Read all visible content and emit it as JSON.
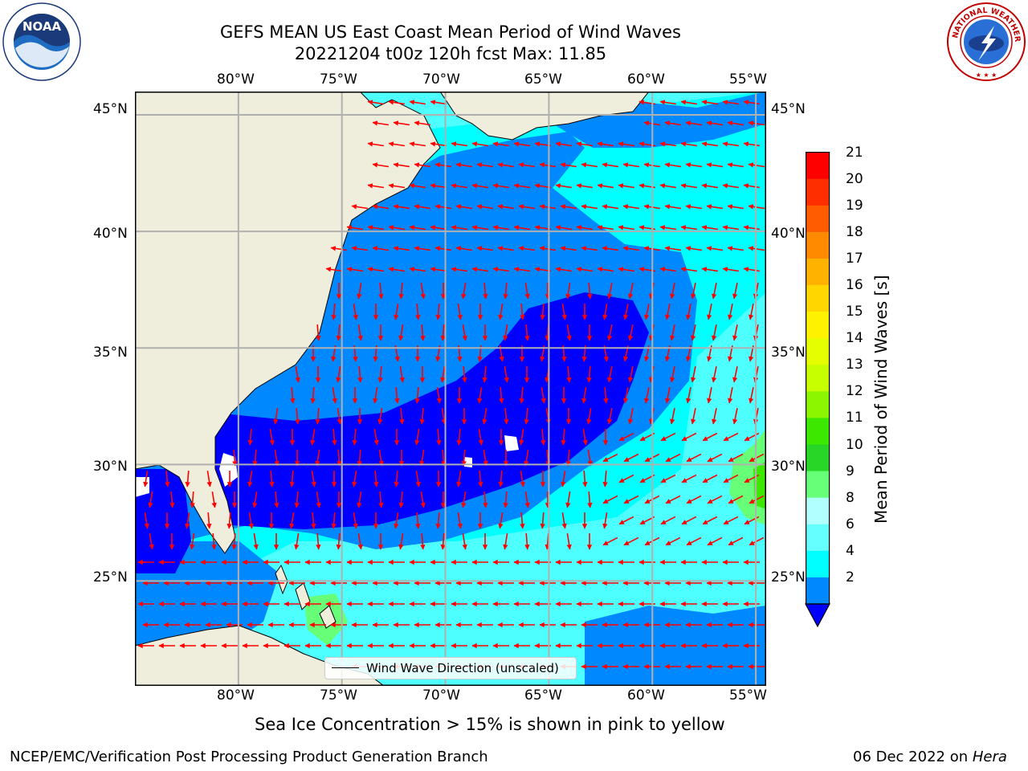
{
  "header": {
    "title_line1": "GEFS MEAN US East Coast Mean Period of Wind Waves",
    "title_line2": "20221204 t00z 120h fcst   Max: 11.85"
  },
  "logos": {
    "left": {
      "icon": "noaa-logo",
      "text": "NOAA"
    },
    "right": {
      "icon": "national-weather-service-logo",
      "text": "NATIONAL WEATHER SERVICE"
    }
  },
  "map": {
    "lon_labels": [
      "80°W",
      "75°W",
      "70°W",
      "65°W",
      "60°W",
      "55°W"
    ],
    "lat_labels": [
      "45°N",
      "40°N",
      "35°N",
      "30°N",
      "25°N"
    ],
    "lat_labels_right": [
      "45°N",
      "40°N",
      "35°N",
      "30°N",
      "25°N"
    ],
    "extent": {
      "lon_min": -85,
      "lon_max": -54.5,
      "lat_min": 20.5,
      "lat_max": 46
    },
    "land_color": "#efeedc",
    "grid_color": "#b0b0b0"
  },
  "legend": {
    "text": "Wind Wave Direction (unscaled)"
  },
  "colorbar": {
    "label": "Mean Period of Wind Waves [s]",
    "ticks": [
      "21",
      "20",
      "19",
      "18",
      "17",
      "16",
      "15",
      "14",
      "13",
      "12",
      "11",
      "10",
      "9",
      "8",
      "6",
      "4",
      "2"
    ],
    "colors": [
      "#ff0000",
      "#ff2e00",
      "#ff5c00",
      "#ff8a00",
      "#ffb300",
      "#ffd600",
      "#fff200",
      "#e6ff00",
      "#c8ff00",
      "#8cf500",
      "#3ce800",
      "#28d628",
      "#66ff77",
      "#b2ffff",
      "#66ffff",
      "#00ffff",
      "#0088ff"
    ],
    "under_color": "#0000ff"
  },
  "footer": {
    "note": "Sea Ice Concentration > 15% is shown in pink to yellow",
    "left": "NCEP/EMC/Verification Post Processing Product Generation Branch",
    "right_date": "06 Dec 2022 on ",
    "right_machine": "Hera"
  }
}
